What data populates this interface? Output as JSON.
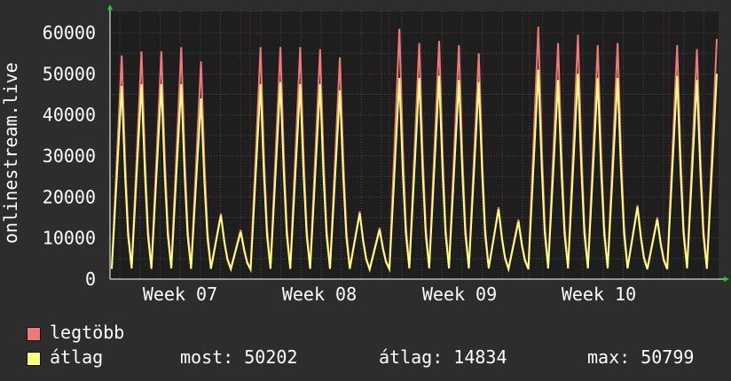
{
  "chart_data": {
    "type": "area",
    "ylabel": "onlinestream.live",
    "y_ticks": [
      0,
      10000,
      20000,
      30000,
      40000,
      50000,
      60000
    ],
    "ylim": [
      0,
      60000
    ],
    "x_ticks": [
      "Week 07",
      "Week 08",
      "Week 09",
      "Week 10"
    ],
    "grid": true,
    "series": [
      {
        "name": "legtöbb",
        "color": "#f07878",
        "values": [
          2800,
          54500,
          2900,
          55500,
          2800,
          55500,
          2900,
          56500,
          2800,
          53000,
          2800,
          16000,
          2700,
          12000,
          2600,
          56500,
          2800,
          56500,
          2800,
          56500,
          2800,
          56000,
          2800,
          54000,
          2800,
          16500,
          2600,
          12500,
          2700,
          61000,
          2900,
          57500,
          2900,
          58000,
          2900,
          57000,
          2900,
          55000,
          2900,
          17500,
          2700,
          14500,
          2700,
          61500,
          2900,
          57500,
          2900,
          59500,
          2900,
          57000,
          2900,
          57500,
          2900,
          18000,
          2700,
          15000,
          2700,
          57000,
          2900,
          56000,
          2800,
          58500
        ]
      },
      {
        "name": "átlag",
        "color": "#ffff80",
        "values": [
          2500,
          47000,
          2600,
          47500,
          2500,
          47500,
          2600,
          47500,
          2500,
          44000,
          2500,
          15500,
          2400,
          11500,
          2300,
          47500,
          2500,
          48000,
          2500,
          47500,
          2500,
          47500,
          2500,
          46000,
          2500,
          16000,
          2300,
          12000,
          2400,
          49000,
          2600,
          49000,
          2600,
          49500,
          2600,
          48500,
          2600,
          48000,
          2600,
          17000,
          2400,
          14000,
          2400,
          51000,
          2600,
          48500,
          2600,
          50000,
          2600,
          49000,
          2600,
          49000,
          2600,
          17500,
          2400,
          14500,
          2400,
          49500,
          2600,
          48500,
          2500,
          50000
        ]
      }
    ]
  },
  "legend": {
    "series1_label": "legtöbb",
    "series2_label": "átlag",
    "now_text": "most: 50202",
    "avg_text": "átlag: 14834",
    "max_text": "max: 50799"
  }
}
